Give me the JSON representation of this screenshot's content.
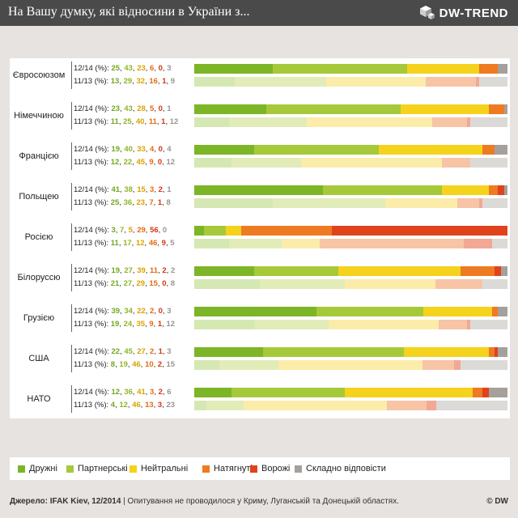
{
  "header": {
    "title": "На Вашу думку, які відносини в України з...",
    "logo": "DW-TREND"
  },
  "colors": {
    "friendly": "#7cb526",
    "partner": "#a6c93a",
    "neutral": "#f5d21c",
    "tense": "#ee7a22",
    "hostile": "#e0431b",
    "hard_to_say": "#a5a09b"
  },
  "chart_data": {
    "type": "bar",
    "orientation": "horizontal",
    "stacked": true,
    "categories": [
      "Євросоюзом",
      "Німеччиною",
      "Францією",
      "Польщею",
      "Росією",
      "Білоруссю",
      "Грузією",
      "США",
      "НАТО"
    ],
    "series": [
      {
        "name": "12/14 (%):",
        "values": [
          [
            25,
            43,
            23,
            6,
            0,
            3
          ],
          [
            23,
            43,
            28,
            5,
            0,
            1
          ],
          [
            19,
            40,
            33,
            4,
            0,
            4
          ],
          [
            41,
            38,
            15,
            3,
            2,
            1
          ],
          [
            3,
            7,
            5,
            29,
            56,
            0
          ],
          [
            19,
            27,
            39,
            11,
            2,
            2
          ],
          [
            39,
            34,
            22,
            2,
            0,
            3
          ],
          [
            22,
            45,
            27,
            2,
            1,
            3
          ],
          [
            12,
            36,
            41,
            3,
            2,
            6
          ]
        ]
      },
      {
        "name": "11/13 (%):",
        "values": [
          [
            13,
            29,
            32,
            16,
            1,
            9
          ],
          [
            11,
            25,
            40,
            11,
            1,
            12
          ],
          [
            12,
            22,
            45,
            9,
            0,
            12
          ],
          [
            25,
            36,
            23,
            7,
            1,
            8
          ],
          [
            11,
            17,
            12,
            46,
            9,
            5
          ],
          [
            21,
            27,
            29,
            15,
            0,
            8
          ],
          [
            19,
            24,
            35,
            9,
            1,
            12
          ],
          [
            8,
            19,
            46,
            10,
            2,
            15
          ],
          [
            4,
            12,
            46,
            13,
            3,
            23
          ]
        ]
      }
    ],
    "legend": [
      "Дружні",
      "Партнерські",
      "Нейтральні",
      "Натягнуті",
      "Ворожі",
      "Складно відповісти"
    ],
    "legend_position": "bottom"
  },
  "footer": {
    "source": "Джерело: IFAK Kiev, 12/2014",
    "note": " | Опитування не проводилося у Криму, Луганській та Донецькій областях.",
    "copyright": "© DW"
  }
}
